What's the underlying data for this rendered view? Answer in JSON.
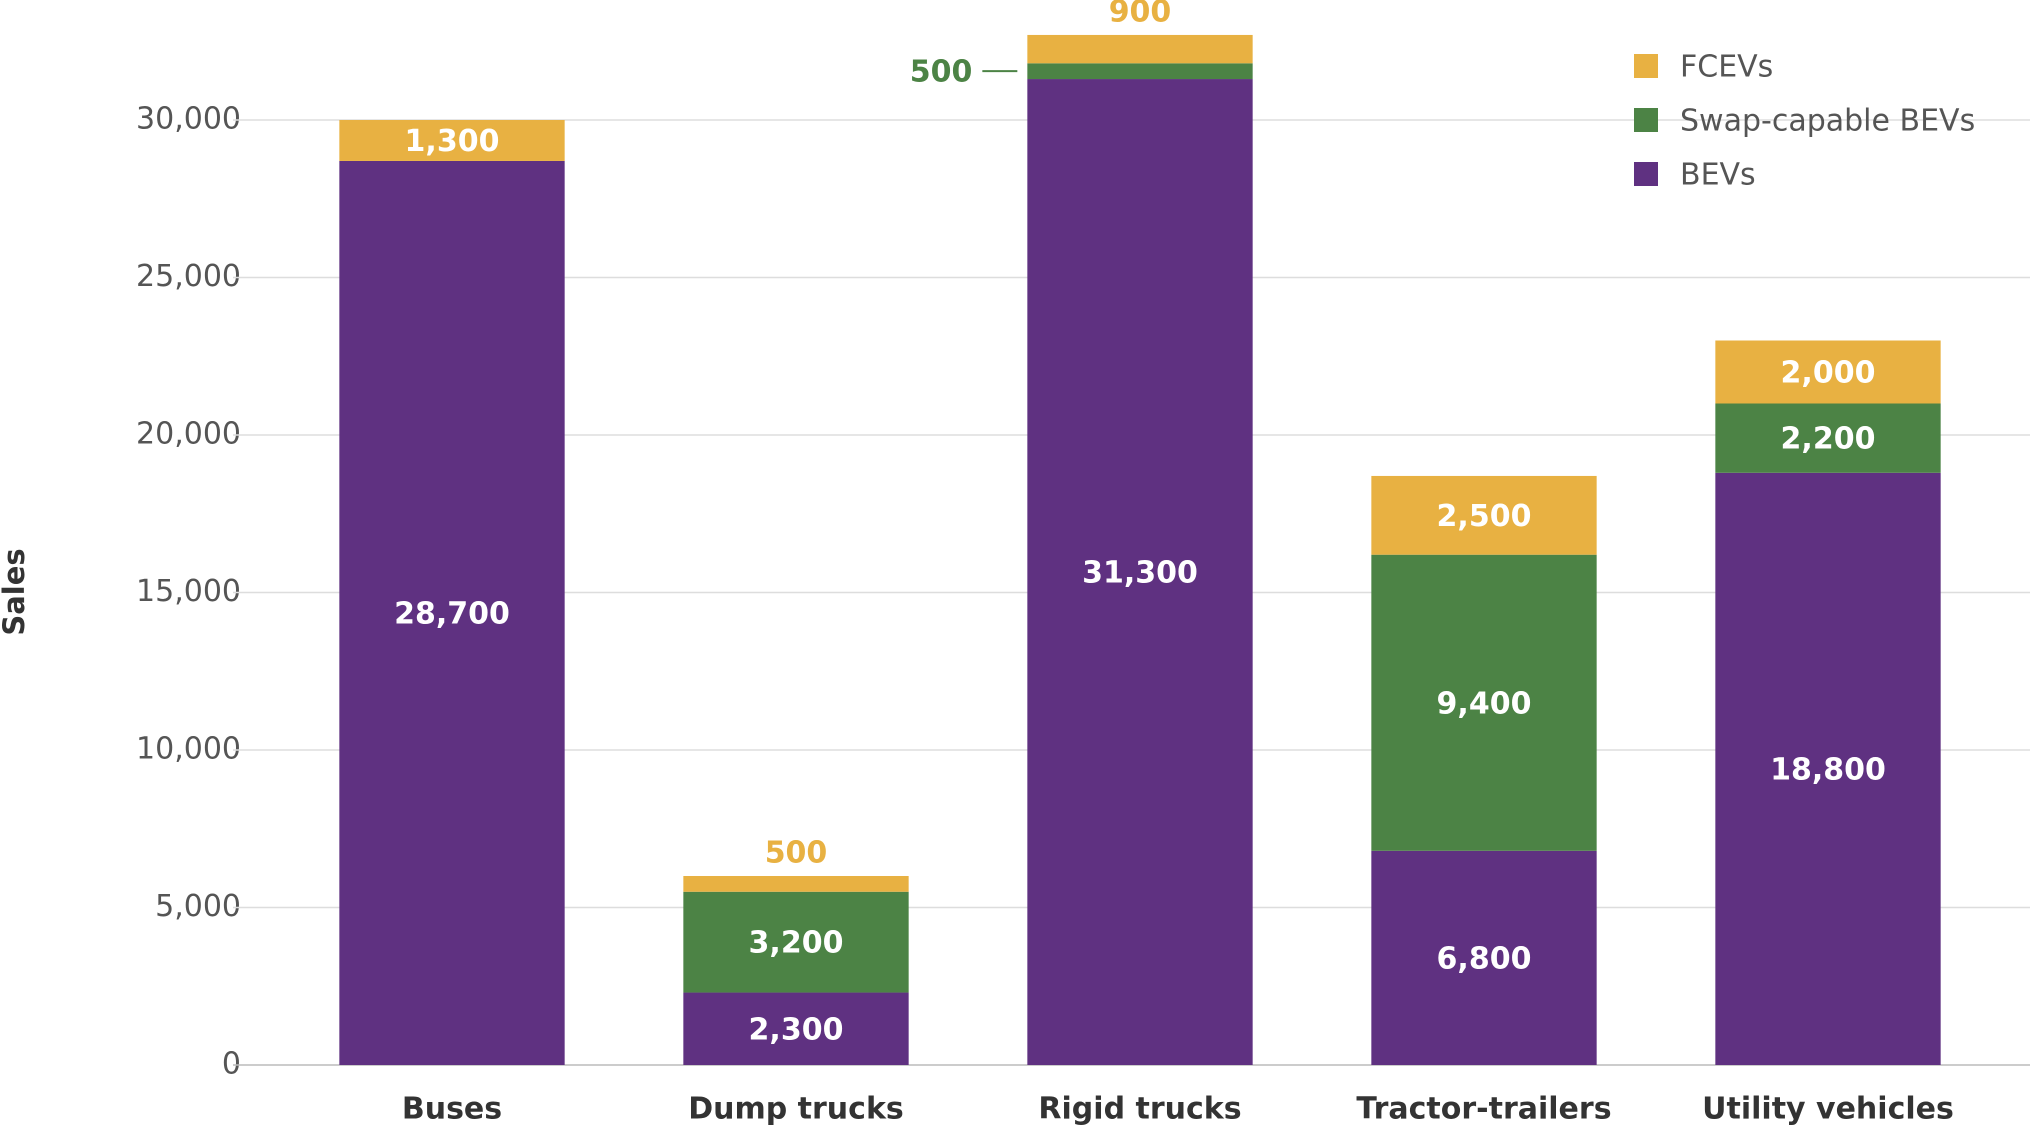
{
  "chart_data": {
    "type": "stacked_bar",
    "y_label": "Sales",
    "categories": [
      "Buses",
      "Dump trucks",
      "Rigid trucks",
      "Tractor-trailers",
      "Utility vehicles"
    ],
    "series": [
      {
        "name": "BEVs",
        "color": "#5f3181",
        "values": [
          28700,
          2300,
          31300,
          6800,
          18800
        ],
        "value_labels": [
          "28,700",
          "2,300",
          "31,300",
          "6,800",
          "18,800"
        ]
      },
      {
        "name": "Swap-capable BEVs",
        "color": "#4c8345",
        "values": [
          null,
          3200,
          500,
          9400,
          2200
        ],
        "value_labels": [
          null,
          "3,200",
          "500",
          "9,400",
          "2,200"
        ]
      },
      {
        "name": "FCEVs",
        "color": "#e8b142",
        "values": [
          1300,
          500,
          900,
          2500,
          2000
        ],
        "value_labels": [
          "1,300",
          "500",
          "900",
          "2,500",
          "2,000"
        ]
      }
    ],
    "ylim": [
      0,
      33000
    ],
    "yticks": [
      0,
      {
        "value": 5000,
        "label": "5,000"
      },
      {
        "value": 10000,
        "label": "10,000"
      },
      {
        "value": 15000,
        "label": "15,000"
      },
      {
        "value": 20000,
        "label": "20,000"
      },
      {
        "value": 25000,
        "label": "25,000"
      },
      {
        "value": 30000,
        "label": "30,000"
      }
    ],
    "grid": true,
    "legend": "top-right"
  }
}
